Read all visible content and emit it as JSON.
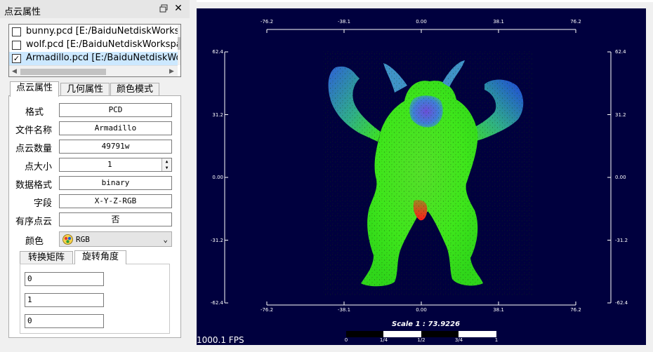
{
  "panel": {
    "title": "点云属性",
    "files": [
      {
        "name": "bunny.pcd [E:/BaiduNetdiskWorksp",
        "checked": false
      },
      {
        "name": "wolf.pcd [E:/BaiduNetdiskWorkspa",
        "checked": false
      },
      {
        "name": "Armadillo.pcd [E:/BaiduNetdiskWo",
        "checked": true
      }
    ],
    "tabs": [
      "点云属性",
      "几何属性",
      "颜色模式"
    ],
    "properties": {
      "format_label": "格式",
      "format_value": "PCD",
      "filename_label": "文件名称",
      "filename_value": "Armadillo",
      "count_label": "点云数量",
      "count_value": "49791w",
      "size_label": "点大小",
      "size_value": "1",
      "datafmt_label": "数据格式",
      "datafmt_value": "binary",
      "fields_label": "字段",
      "fields_value": "X-Y-Z-RGB",
      "ordered_label": "有序点云",
      "ordered_value": "否",
      "color_label": "颜色",
      "color_value": "RGB"
    },
    "subtabs": [
      "转换矩阵",
      "旋转角度"
    ],
    "rotation": [
      "0",
      "1",
      "0"
    ]
  },
  "viewport": {
    "fps": "1000.1 FPS",
    "scale_label": "Scale 1 : 73.9226",
    "scale_ticks": [
      "0",
      "1/4",
      "1/2",
      "3/4",
      "1"
    ],
    "x_ticks": [
      "-76.2",
      "-38.1",
      "0.00",
      "38.1",
      "76.2"
    ],
    "y_ticks": [
      "62.4",
      "31.2",
      "0.00",
      "-31.2",
      "-62.4"
    ],
    "x_range": [
      -76.2,
      76.2
    ],
    "y_range": [
      -62.4,
      62.4
    ],
    "background_color": "#00003e"
  }
}
